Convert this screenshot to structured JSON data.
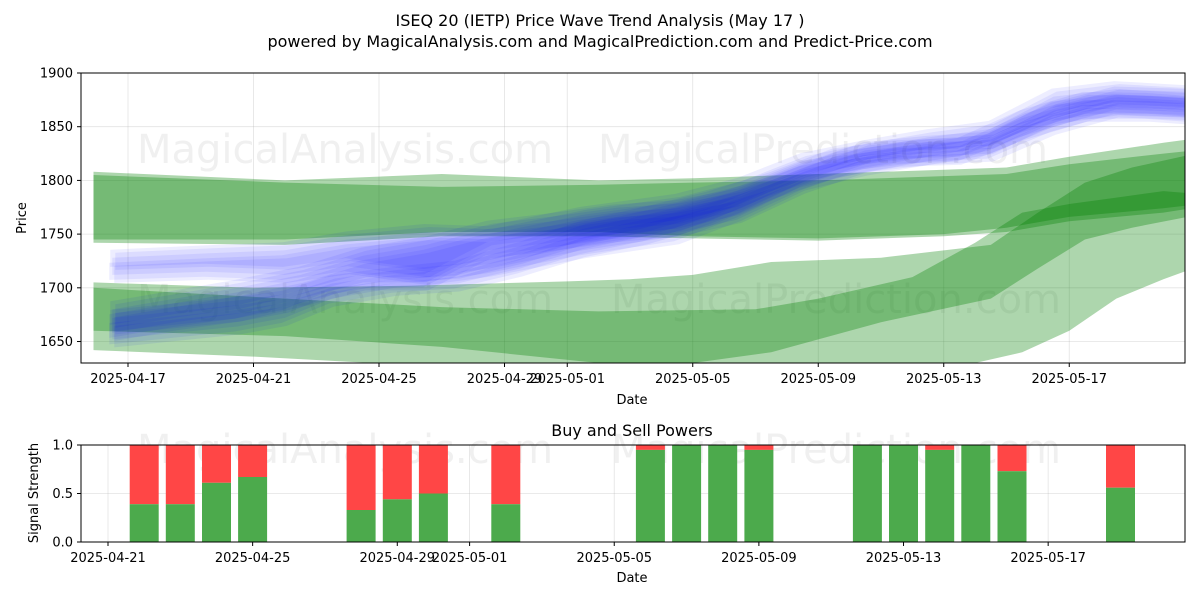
{
  "figure": {
    "title_line1": "ISEQ 20 (IETP) Price Wave Trend Analysis (May 17 )",
    "title_line2": "powered by MagicalAnalysis.com and MagicalPrediction.com and Predict-Price.com",
    "watermarks": [
      "MagicalAnalysis.com",
      "MagicalPrediction.com"
    ]
  },
  "chart_data": [
    {
      "type": "area",
      "xlabel": "Date",
      "ylabel": "Price",
      "ylim": [
        1630,
        1900
      ],
      "yticks": [
        1650,
        1700,
        1750,
        1800,
        1850,
        1900
      ],
      "xticks": [
        "2025-04-17",
        "2025-04-21",
        "2025-04-25",
        "2025-04-29",
        "2025-05-01",
        "2025-05-05",
        "2025-05-09",
        "2025-05-13",
        "2025-05-17"
      ],
      "grid": true,
      "colors": {
        "blue_band": "#0000ff",
        "green_band": "#008000"
      },
      "blue_bands": [
        {
          "days": [
            -0.5,
            1.5,
            3.5,
            5,
            6.5,
            8.5,
            10.5,
            12.5,
            14.5,
            16.5,
            18.5,
            20.5,
            22.5,
            24.5,
            26.5,
            28.5,
            30.5,
            32.5,
            33.5,
            34.5
          ],
          "upper": [
            1672,
            1678,
            1684,
            1690,
            1704,
            1712,
            1718,
            1735,
            1755,
            1768,
            1782,
            1800,
            1822,
            1830,
            1832,
            1858,
            1875,
            1874,
            1872,
            1868
          ],
          "lower": [
            1652,
            1658,
            1664,
            1672,
            1690,
            1700,
            1704,
            1718,
            1736,
            1748,
            1765,
            1790,
            1810,
            1820,
            1822,
            1845,
            1862,
            1862,
            1860,
            1858
          ]
        },
        {
          "days": [
            -0.5,
            2.5,
            5,
            7,
            9.5,
            11.5,
            14.5,
            17.5,
            19.5,
            21.5,
            23.5,
            25.5,
            27.5,
            29.5,
            31.5,
            34.5
          ],
          "upper": [
            1728,
            1732,
            1735,
            1745,
            1752,
            1750,
            1768,
            1780,
            1795,
            1818,
            1830,
            1840,
            1848,
            1878,
            1885,
            1880
          ],
          "lower": [
            1712,
            1715,
            1712,
            1720,
            1710,
            1718,
            1735,
            1748,
            1770,
            1798,
            1812,
            1822,
            1832,
            1860,
            1868,
            1865
          ]
        },
        {
          "days": [
            -0.5,
            1.5,
            3.5,
            5.5,
            7.5,
            9.5,
            11.5,
            13.5,
            15.5,
            17.5,
            19.5,
            21.5,
            23.5,
            25.5,
            27.5,
            29.5,
            31.5,
            33.5,
            34.5
          ],
          "upper": [
            1680,
            1690,
            1700,
            1712,
            1730,
            1740,
            1755,
            1762,
            1770,
            1774,
            1785,
            1808,
            1828,
            1834,
            1838,
            1865,
            1880,
            1878,
            1876
          ],
          "lower": [
            1658,
            1668,
            1676,
            1690,
            1705,
            1705,
            1735,
            1742,
            1750,
            1755,
            1768,
            1795,
            1815,
            1822,
            1825,
            1850,
            1866,
            1864,
            1862
          ]
        }
      ],
      "green_bands": [
        {
          "days": [
            -1.1,
            5,
            10,
            15,
            18,
            22,
            26,
            28,
            30,
            33,
            34.8
          ],
          "upper": [
            1808,
            1800,
            1806,
            1800,
            1802,
            1806,
            1810,
            1812,
            1822,
            1835,
            1842
          ],
          "lower": [
            1742,
            1740,
            1748,
            1748,
            1746,
            1744,
            1748,
            1752,
            1762,
            1770,
            1778
          ]
        },
        {
          "days": [
            -1.1,
            5,
            10,
            15,
            18,
            22,
            26,
            28,
            30,
            33,
            34.7
          ],
          "upper": [
            1805,
            1798,
            1794,
            1796,
            1798,
            1800,
            1804,
            1806,
            1815,
            1825,
            1830
          ],
          "lower": [
            1745,
            1745,
            1752,
            1752,
            1748,
            1746,
            1750,
            1756,
            1766,
            1774,
            1780
          ]
        },
        {
          "days": [
            -1.1,
            4,
            9,
            14,
            16,
            18,
            20.5,
            24,
            27.5,
            29,
            30.5,
            32,
            34.8
          ],
          "upper": [
            1705,
            1700,
            1702,
            1706,
            1708,
            1712,
            1724,
            1728,
            1740,
            1770,
            1798,
            1812,
            1830
          ],
          "lower": [
            1642,
            1636,
            1628,
            1628,
            1628,
            1630,
            1640,
            1668,
            1690,
            1718,
            1745,
            1756,
            1772
          ]
        },
        {
          "days": [
            -1.1,
            5,
            10,
            15,
            20,
            22,
            25,
            27,
            28.5,
            30,
            31.5,
            33,
            34.7
          ],
          "upper": [
            1700,
            1690,
            1682,
            1678,
            1680,
            1690,
            1710,
            1742,
            1770,
            1778,
            1784,
            1790,
            1786
          ],
          "lower": [
            1660,
            1655,
            1645,
            1630,
            1628,
            1630,
            1630,
            1630,
            1640,
            1660,
            1690,
            1708,
            1726
          ]
        }
      ]
    },
    {
      "type": "bar",
      "title": "Buy and Sell Powers",
      "xlabel": "Date",
      "ylabel": "Signal Strength",
      "ylim": [
        0,
        1
      ],
      "yticks": [
        "0.0",
        "0.5",
        "1.0"
      ],
      "xticks": [
        "2025-04-21",
        "2025-04-25",
        "2025-04-29",
        "2025-05-01",
        "2025-05-05",
        "2025-05-09",
        "2025-05-13",
        "2025-05-17"
      ],
      "grid": true,
      "colors": {
        "buy": "#4caa4c",
        "sell": "#ff4646"
      },
      "series": [
        {
          "date": "2025-04-22",
          "buy": 0.39
        },
        {
          "date": "2025-04-23",
          "buy": 0.39
        },
        {
          "date": "2025-04-24",
          "buy": 0.61
        },
        {
          "date": "2025-04-25",
          "buy": 0.67
        },
        {
          "date": "2025-04-28",
          "buy": 0.33
        },
        {
          "date": "2025-04-29",
          "buy": 0.44
        },
        {
          "date": "2025-04-30",
          "buy": 0.5
        },
        {
          "date": "2025-05-02",
          "buy": 0.39
        },
        {
          "date": "2025-05-06",
          "buy": 0.95
        },
        {
          "date": "2025-05-07",
          "buy": 1.0
        },
        {
          "date": "2025-05-08",
          "buy": 1.0
        },
        {
          "date": "2025-05-09",
          "buy": 0.95
        },
        {
          "date": "2025-05-12",
          "buy": 1.0
        },
        {
          "date": "2025-05-13",
          "buy": 1.0
        },
        {
          "date": "2025-05-14",
          "buy": 0.95
        },
        {
          "date": "2025-05-15",
          "buy": 1.0
        },
        {
          "date": "2025-05-16",
          "buy": 0.73
        },
        {
          "date": "2025-05-19",
          "buy": 0.56
        }
      ]
    }
  ]
}
